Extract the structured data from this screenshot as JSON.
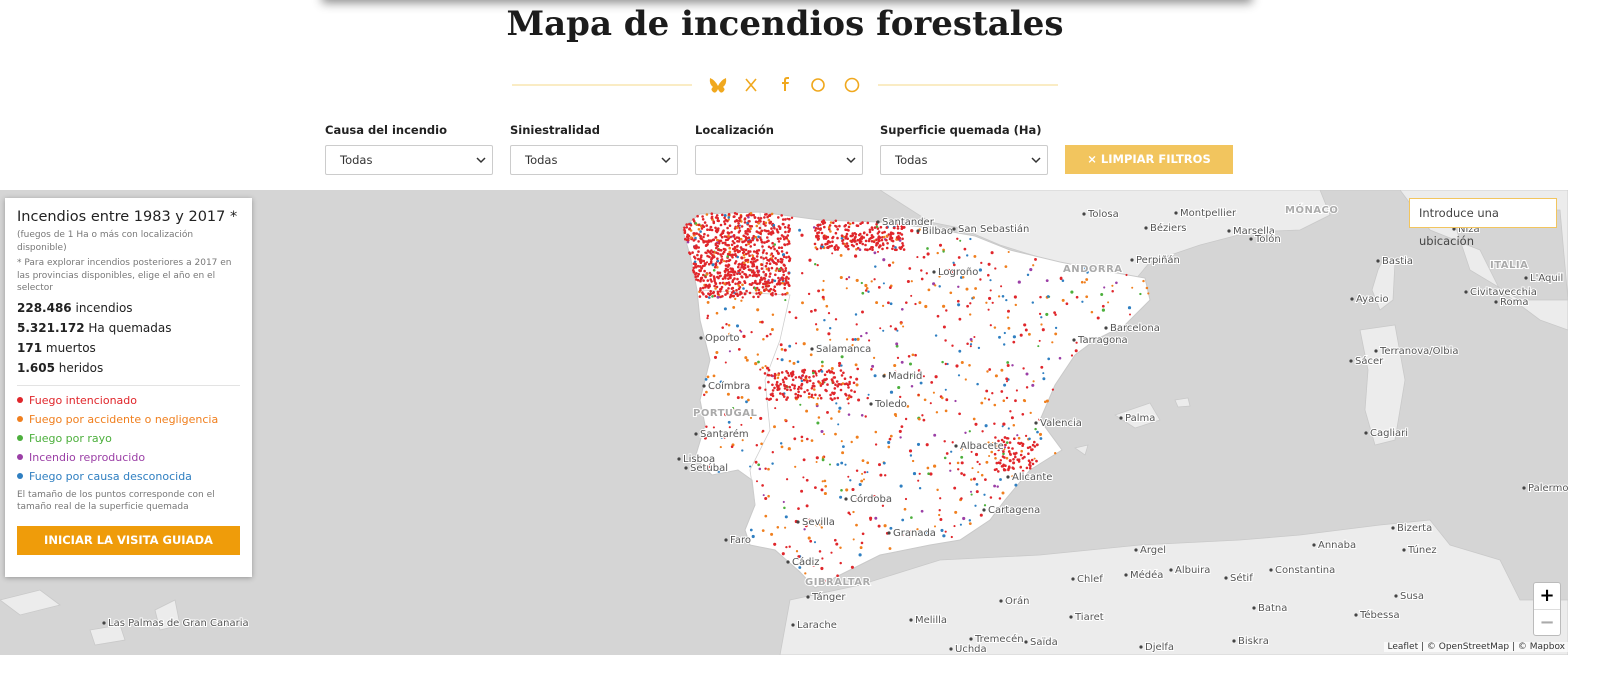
{
  "header": {
    "title": "Mapa de incendios forestales"
  },
  "filters": [
    {
      "label": "Causa del incendio",
      "value": "Todas"
    },
    {
      "label": "Siniestralidad",
      "value": "Todas"
    },
    {
      "label": "Localización"
    },
    {
      "label": "Superficie quemada (Ha)",
      "value": "Todas"
    }
  ],
  "clear_button": "× LIMPIAR FILTROS",
  "panel": {
    "title": "Incendios entre 1983 y 2017 *",
    "subtitle": "(fuegos de 1 Ha o más con localización disponible)",
    "note": "* Para explorar incendios posteriores a 2017 en las provincias disponibles, elige el año en el selector",
    "stats": [
      {
        "value": "228.486",
        "label": "incendios"
      },
      {
        "value": "5.321.172",
        "label": "Ha quemadas"
      },
      {
        "value": "171",
        "label": "muertos"
      },
      {
        "value": "1.605",
        "label": "heridos"
      }
    ],
    "legend": [
      {
        "label": "Fuego intencionado",
        "color": "#e0262b"
      },
      {
        "label": "Fuego por accidente o negligencia",
        "color": "#f07f1e"
      },
      {
        "label": "Fuego por rayo",
        "color": "#4caf3c"
      },
      {
        "label": "Incendio reproducido",
        "color": "#9b3fa6"
      },
      {
        "label": "Fuego por causa desconocida",
        "color": "#2f7fc1"
      }
    ],
    "size_note": "El tamaño de los puntos corresponde con el tamaño real de la superficie quemada",
    "tour_button": "INICIAR LA VISITA GUIADA"
  },
  "search_placeholder": "Introduce una ubicación",
  "zoom": {
    "in": "+",
    "out": "−"
  },
  "attribution": "Leaflet | © OpenStreetMap | © Mapbox",
  "places": [
    "Tolosa",
    "Montpellier",
    "Béziers",
    "Marsella",
    "Tolón",
    "MÓNACO",
    "Niza",
    "Bastia",
    "ITALIA",
    "L'Aquil",
    "Civitavecchia",
    "Roma",
    "Ayacio",
    "Terranova/Olbia",
    "Sácer",
    "Cagliari",
    "Palermo",
    "Santander",
    "Bilbao",
    "San Sebastián",
    "Logroño",
    "ANDORRA",
    "Perpiñán",
    "Barcelona",
    "Tarragona",
    "Oporto",
    "Salamanca",
    "Madrid",
    "Coímbra",
    "PORTUGAL",
    "Toledo",
    "Valencia",
    "Palma",
    "Santarém",
    "Lisboa",
    "Setúbal",
    "Albacete",
    "Alicante",
    "Córdoba",
    "Cartagena",
    "Sevilla",
    "Granada",
    "Faro",
    "Cádiz",
    "GIBRALTAR",
    "Tánger",
    "Larache",
    "Melilla",
    "Orán",
    "Chlef",
    "Médéa",
    "Argel",
    "Albuira",
    "Sétif",
    "Constantina",
    "Annaba",
    "Bizerta",
    "Túnez",
    "Batna",
    "Tébessa",
    "Susa",
    "Tiaret",
    "Tremecén",
    "Saïda",
    "Uchda",
    "Djelfa",
    "Biskra",
    "Las Palmas de Gran Canaria"
  ]
}
